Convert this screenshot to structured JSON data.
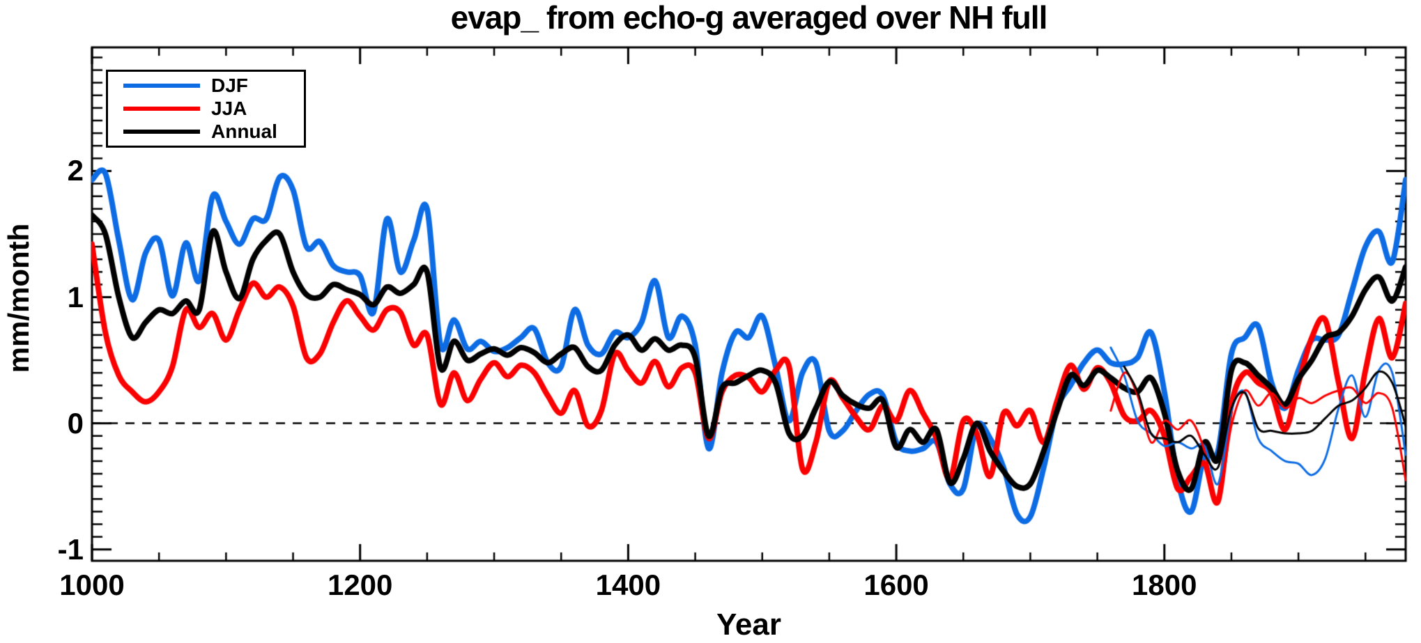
{
  "title": "evap_ from echo-g averaged over NH full",
  "colors": {
    "djf_blue": "#0d6ce4",
    "jja_red": "#fb0000",
    "annual_black": "#000000",
    "axis": "#000000",
    "background": "#ffffff"
  },
  "legend": {
    "items": [
      {
        "label": "DJF",
        "color": "#0d6ce4"
      },
      {
        "label": "JJA",
        "color": "#fb0000"
      },
      {
        "label": "Annual",
        "color": "#000000"
      }
    ]
  },
  "chart_data": {
    "type": "line",
    "title": "evap_ from echo-g averaged over NH full",
    "xlabel": "Year",
    "ylabel": "mm/month",
    "xlim": [
      1000,
      1980
    ],
    "ylim": [
      -1.09,
      2.98
    ],
    "x_major_ticks": [
      1000,
      1200,
      1400,
      1600,
      1800
    ],
    "x_minor_step": 50,
    "y_major_ticks": [
      -1,
      0,
      1,
      2
    ],
    "y_minor_step": 0.1,
    "grid": false,
    "legend_position": "upper-left",
    "zero_line": {
      "y": 0,
      "style": "dashed"
    },
    "x_step": 10,
    "series": [
      {
        "name": "DJF",
        "color": "#0d6ce4",
        "width": 8,
        "x_start": 1000,
        "values": [
          1.93,
          1.98,
          1.45,
          0.98,
          1.35,
          1.45,
          1.01,
          1.43,
          1.13,
          1.8,
          1.6,
          1.42,
          1.62,
          1.62,
          1.95,
          1.85,
          1.4,
          1.44,
          1.25,
          1.2,
          1.17,
          0.88,
          1.62,
          1.2,
          1.45,
          1.7,
          0.62,
          0.82,
          0.59,
          0.65,
          0.57,
          0.6,
          0.68,
          0.75,
          0.48,
          0.45,
          0.9,
          0.62,
          0.55,
          0.72,
          0.68,
          0.8,
          1.13,
          0.68,
          0.85,
          0.62,
          -0.2,
          0.4,
          0.72,
          0.68,
          0.85,
          0.45,
          0.02,
          0.4,
          0.48,
          -0.06,
          -0.06,
          0.1,
          0.23,
          0.22,
          -0.15,
          -0.22,
          -0.2,
          -0.15,
          -0.48,
          -0.52,
          -0.02,
          -0.12,
          -0.35,
          -0.72,
          -0.74,
          -0.35,
          0.12,
          0.3,
          0.48,
          0.58,
          0.48,
          0.47,
          0.52,
          0.72,
          0.25,
          -0.45,
          -0.7,
          -0.25,
          -0.22,
          0.55,
          0.68,
          0.77,
          0.32,
          0.12,
          0.42,
          0.66,
          0.66,
          0.7,
          1.05,
          1.4,
          1.52,
          1.28,
          1.93
        ]
      },
      {
        "name": "JJA",
        "color": "#fb0000",
        "width": 8,
        "x_start": 1000,
        "values": [
          1.42,
          0.72,
          0.38,
          0.25,
          0.17,
          0.25,
          0.45,
          0.9,
          0.76,
          0.87,
          0.66,
          0.9,
          1.11,
          1.0,
          1.08,
          0.93,
          0.52,
          0.55,
          0.8,
          0.97,
          0.85,
          0.74,
          0.9,
          0.88,
          0.62,
          0.7,
          0.15,
          0.4,
          0.18,
          0.35,
          0.48,
          0.37,
          0.46,
          0.4,
          0.22,
          0.08,
          0.26,
          -0.02,
          0.1,
          0.55,
          0.42,
          0.32,
          0.49,
          0.29,
          0.44,
          0.4,
          -0.12,
          0.25,
          0.38,
          0.36,
          0.25,
          0.42,
          0.45,
          -0.36,
          -0.15,
          0.33,
          0.2,
          0.05,
          -0.05,
          0.14,
          0.02,
          0.26,
          0.08,
          -0.12,
          -0.44,
          0.02,
          -0.08,
          -0.42,
          0.08,
          -0.02,
          0.1,
          -0.15,
          0.18,
          0.46,
          0.27,
          0.44,
          0.32,
          0.06,
          0.02,
          0.1,
          -0.1,
          -0.52,
          -0.42,
          -0.32,
          -0.62,
          0.15,
          0.4,
          0.32,
          0.24,
          -0.05,
          0.32,
          0.68,
          0.82,
          0.32,
          -0.12,
          0.42,
          0.83,
          0.52,
          0.95
        ]
      },
      {
        "name": "Annual",
        "color": "#000000",
        "width": 8,
        "x_start": 1000,
        "values": [
          1.65,
          1.5,
          1.0,
          0.68,
          0.8,
          0.9,
          0.87,
          0.97,
          0.9,
          1.52,
          1.2,
          0.99,
          1.3,
          1.45,
          1.5,
          1.2,
          1.02,
          1.0,
          1.1,
          1.06,
          1.02,
          0.94,
          1.08,
          1.03,
          1.1,
          1.2,
          0.44,
          0.65,
          0.5,
          0.55,
          0.59,
          0.54,
          0.6,
          0.56,
          0.48,
          0.55,
          0.6,
          0.45,
          0.42,
          0.62,
          0.7,
          0.58,
          0.67,
          0.58,
          0.62,
          0.52,
          -0.1,
          0.28,
          0.32,
          0.38,
          0.42,
          0.32,
          -0.08,
          -0.1,
          0.12,
          0.33,
          0.22,
          0.15,
          0.12,
          0.18,
          -0.19,
          -0.05,
          -0.15,
          -0.05,
          -0.47,
          -0.28,
          0.0,
          -0.22,
          -0.38,
          -0.5,
          -0.48,
          -0.22,
          0.1,
          0.38,
          0.3,
          0.42,
          0.36,
          0.28,
          0.25,
          0.36,
          0.08,
          -0.38,
          -0.52,
          -0.15,
          -0.28,
          0.42,
          0.48,
          0.38,
          0.28,
          0.15,
          0.35,
          0.5,
          0.68,
          0.72,
          0.85,
          1.06,
          1.16,
          0.97,
          1.24
        ]
      },
      {
        "name": "DJF-thin",
        "color": "#0d6ce4",
        "width": 3,
        "x_start": 1760,
        "values": [
          0.6,
          0.38,
          0.02,
          -0.08,
          -0.18,
          -0.15,
          -0.2,
          -0.18,
          -0.48,
          0.1,
          0.25,
          -0.12,
          -0.22,
          -0.3,
          -0.32,
          -0.41,
          -0.28,
          0.12,
          0.38,
          0.05,
          0.42,
          0.4,
          -0.25
        ]
      },
      {
        "name": "JJA-thin",
        "color": "#fb0000",
        "width": 3,
        "x_start": 1760,
        "values": [
          0.1,
          0.4,
          0.22,
          -0.15,
          0.02,
          -0.05,
          0.02,
          -0.22,
          -0.62,
          -0.02,
          0.26,
          0.14,
          0.24,
          0.12,
          0.2,
          0.16,
          0.22,
          0.26,
          0.28,
          0.16,
          0.24,
          0.12,
          -0.45
        ]
      },
      {
        "name": "Annual-thin",
        "color": "#000000",
        "width": 3,
        "x_start": 1770,
        "values": [
          0.45,
          0.25,
          -0.08,
          -0.12,
          -0.15,
          -0.1,
          -0.25,
          -0.35,
          0.12,
          0.24,
          -0.04,
          -0.06,
          -0.08,
          -0.08,
          -0.06,
          0.04,
          0.14,
          0.18,
          0.28,
          0.41,
          0.32,
          -0.02
        ]
      }
    ]
  }
}
